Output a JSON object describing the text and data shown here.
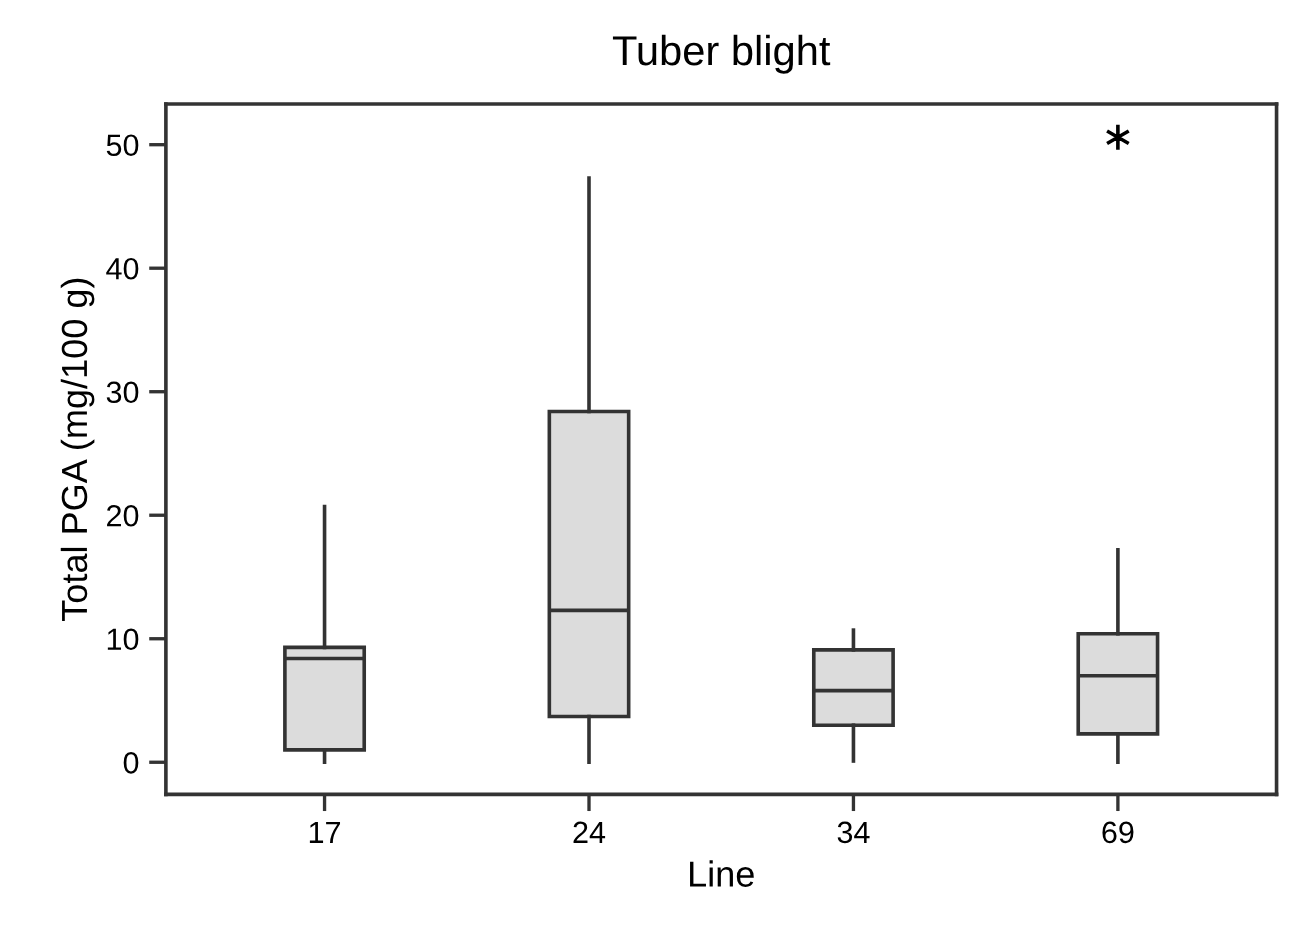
{
  "chart_data": {
    "type": "box",
    "title": "Tuber blight",
    "xlabel": "Line",
    "ylabel": "Total PGA (mg/100 g)",
    "categories": [
      "17",
      "24",
      "34",
      "69"
    ],
    "boxes": [
      {
        "low": 0,
        "q1": 1.0,
        "median": 8.4,
        "q3": 9.3,
        "high": 20.7
      },
      {
        "low": 0,
        "q1": 3.7,
        "median": 12.3,
        "q3": 28.4,
        "high": 47.3
      },
      {
        "low": 0.1,
        "q1": 3.0,
        "median": 5.8,
        "q3": 9.1,
        "high": 10.7
      },
      {
        "low": 0,
        "q1": 2.3,
        "median": 7.0,
        "q3": 10.4,
        "high": 17.2,
        "outliers": [
          50.6
        ]
      }
    ],
    "color": "#dcdcdc",
    "ylim": [
      -2.6,
      53.3
    ],
    "yticks": [
      0,
      10,
      20,
      30,
      40,
      50
    ],
    "grid": false,
    "legend": false,
    "marker": "star"
  }
}
